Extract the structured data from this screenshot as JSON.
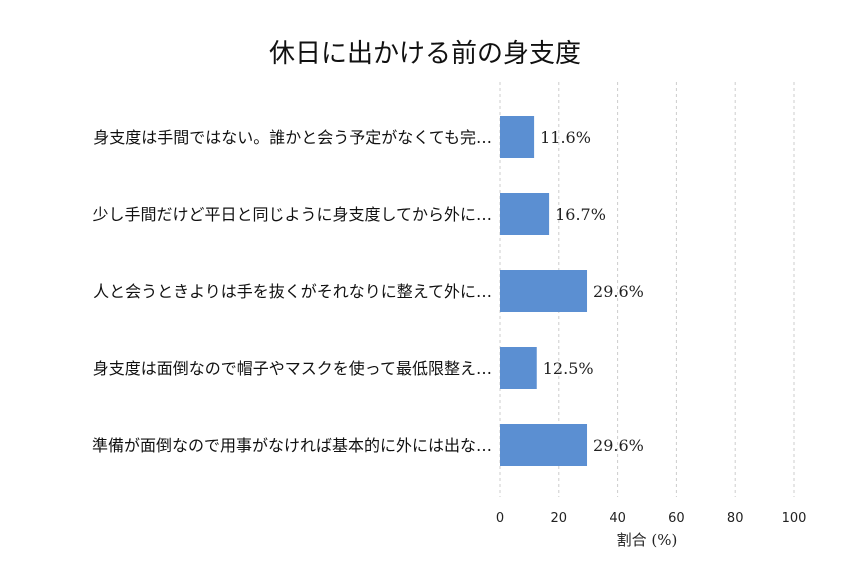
{
  "chart_data": {
    "type": "bar",
    "orientation": "horizontal",
    "title": "休日に出かける前の身支度",
    "xlabel": "割合 (%)",
    "ylabel": "",
    "xlim": [
      0,
      100
    ],
    "xticks": [
      "0",
      "20",
      "40",
      "60",
      "80",
      "100"
    ],
    "grid": true,
    "categories": [
      "身支度は手間ではない。誰かと会う予定がなくても完…",
      "少し手間だけど平日と同じように身支度してから外に…",
      "人と会うときよりは手を抜くがそれなりに整えて外に…",
      "身支度は面倒なので帽子やマスクを使って最低限整え…",
      "準備が面倒なので用事がなければ基本的に外には出な…"
    ],
    "values": [
      11.6,
      16.7,
      29.6,
      12.5,
      29.6
    ],
    "value_labels": [
      "11.6%",
      "16.7%",
      "29.6%",
      "12.5%",
      "29.6%"
    ],
    "bar_color": "#5b8fd2"
  }
}
